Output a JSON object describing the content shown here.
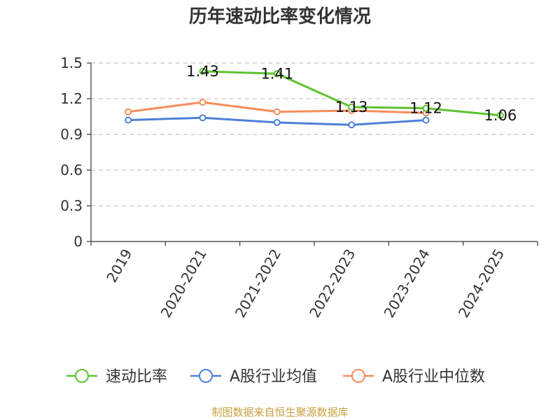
{
  "chart_data": {
    "type": "line",
    "title": "历年速动比率变化情况",
    "categories": [
      "2019",
      "2020-2021",
      "2021-2022",
      "2022-2023",
      "2023-2024",
      "2024-2025"
    ],
    "ylim": [
      0,
      1.5
    ],
    "yticks": [
      "0",
      "0.3",
      "0.6",
      "0.9",
      "1.2",
      "1.5"
    ],
    "grid": true,
    "legend_position": "bottom",
    "series": [
      {
        "name": "速动比率",
        "color": "#5ec231",
        "values": [
          null,
          1.43,
          1.41,
          1.13,
          1.12,
          1.06
        ],
        "labels": [
          "",
          "1.43",
          "1.41",
          "1.13",
          "1.12",
          "1.06"
        ]
      },
      {
        "name": "A股行业均值",
        "color": "#4e7fd8",
        "values": [
          1.02,
          1.04,
          1.0,
          0.98,
          1.02,
          null
        ]
      },
      {
        "name": "A股行业中位数",
        "color": "#f58c5a",
        "values": [
          1.09,
          1.17,
          1.09,
          1.1,
          1.08,
          null
        ]
      }
    ]
  },
  "footer": {
    "source": "制图数据来自恒生聚源数据库"
  }
}
